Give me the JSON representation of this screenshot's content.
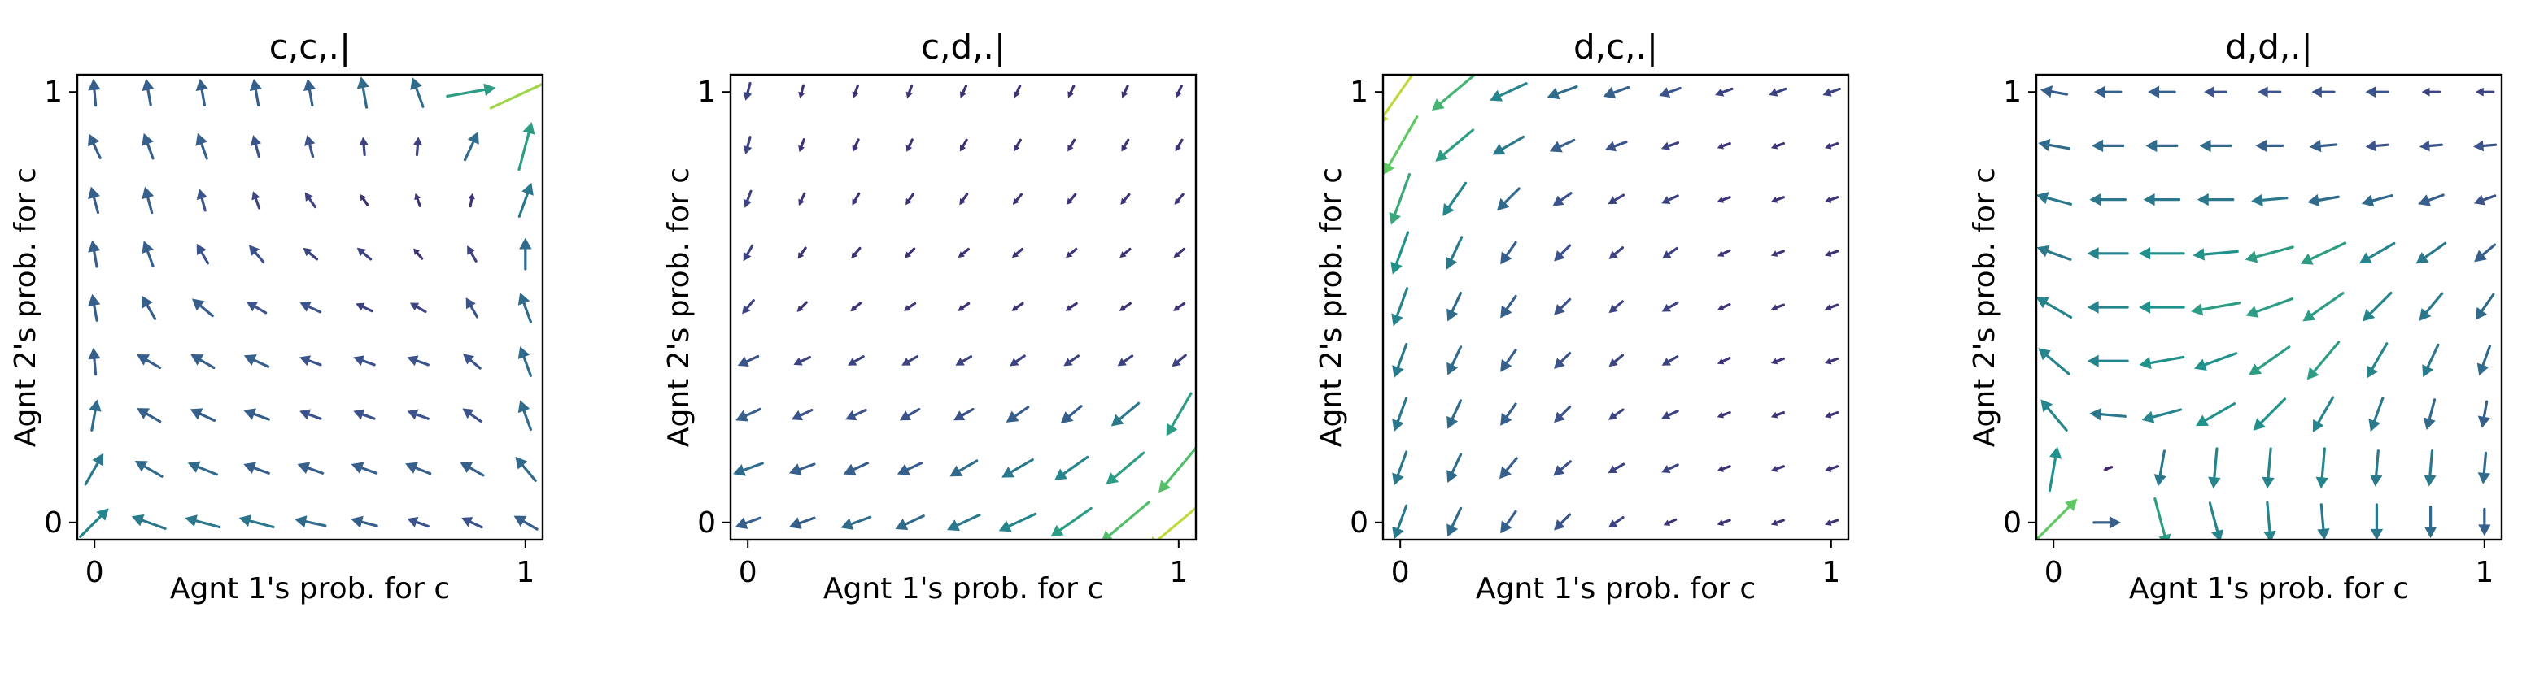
{
  "figure": {
    "colormap": [
      "#440154",
      "#3b528b",
      "#21918c",
      "#5ec962",
      "#fde725"
    ]
  },
  "chart_data": [
    {
      "type": "quiver",
      "title": "c,c,.|",
      "xlabel": "Agnt 1's prob. for c",
      "ylabel": "Agnt 2's prob. for c",
      "xlim": [
        -0.04,
        1.04
      ],
      "ylim": [
        -0.04,
        1.04
      ],
      "xticks": [
        0,
        1
      ],
      "yticks": [
        0,
        1
      ],
      "grid": false,
      "grid_points": [
        0,
        0.125,
        0.25,
        0.375,
        0.5,
        0.625,
        0.75,
        0.875,
        1
      ],
      "angles_deg": [
        [
          45,
          160,
          165,
          165,
          168,
          165,
          160,
          155,
          150
        ],
        [
          60,
          150,
          158,
          160,
          160,
          160,
          158,
          150,
          130
        ],
        [
          80,
          150,
          155,
          160,
          160,
          160,
          160,
          145,
          110
        ],
        [
          95,
          150,
          150,
          155,
          160,
          160,
          160,
          140,
          110
        ],
        [
          100,
          120,
          140,
          150,
          155,
          155,
          150,
          120,
          110
        ],
        [
          100,
          110,
          120,
          130,
          140,
          140,
          130,
          120,
          90
        ],
        [
          105,
          105,
          105,
          110,
          125,
          125,
          110,
          80,
          70
        ],
        [
          115,
          110,
          110,
          105,
          105,
          95,
          85,
          65,
          75
        ],
        [
          95,
          100,
          100,
          100,
          100,
          100,
          110,
          10,
          25
        ]
      ],
      "magnitudes": [
        [
          0.45,
          0.4,
          0.4,
          0.4,
          0.35,
          0.3,
          0.25,
          0.25,
          0.3
        ],
        [
          0.4,
          0.35,
          0.35,
          0.3,
          0.3,
          0.3,
          0.3,
          0.3,
          0.35
        ],
        [
          0.35,
          0.3,
          0.3,
          0.3,
          0.25,
          0.25,
          0.25,
          0.25,
          0.35
        ],
        [
          0.3,
          0.3,
          0.3,
          0.3,
          0.25,
          0.25,
          0.25,
          0.25,
          0.35
        ],
        [
          0.3,
          0.3,
          0.3,
          0.25,
          0.25,
          0.2,
          0.2,
          0.25,
          0.35
        ],
        [
          0.3,
          0.3,
          0.25,
          0.25,
          0.2,
          0.2,
          0.15,
          0.2,
          0.35
        ],
        [
          0.3,
          0.3,
          0.25,
          0.2,
          0.2,
          0.15,
          0.15,
          0.15,
          0.4
        ],
        [
          0.3,
          0.3,
          0.3,
          0.25,
          0.25,
          0.2,
          0.2,
          0.35,
          0.55
        ],
        [
          0.3,
          0.3,
          0.3,
          0.3,
          0.3,
          0.35,
          0.35,
          0.55,
          0.85
        ]
      ]
    },
    {
      "type": "quiver",
      "title": "c,d,.|",
      "xlabel": "Agnt 1's prob. for c",
      "ylabel": "Agnt 2's prob. for c",
      "xlim": [
        -0.04,
        1.04
      ],
      "ylim": [
        -0.04,
        1.04
      ],
      "xticks": [
        0,
        1
      ],
      "yticks": [
        0,
        1
      ],
      "grid": false,
      "grid_points": [
        0,
        0.125,
        0.25,
        0.375,
        0.5,
        0.625,
        0.75,
        0.875,
        1
      ],
      "angles_deg": [
        [
          200,
          200,
          200,
          205,
          205,
          205,
          215,
          220,
          220
        ],
        [
          200,
          200,
          205,
          205,
          210,
          210,
          215,
          220,
          230
        ],
        [
          205,
          205,
          205,
          210,
          210,
          215,
          220,
          220,
          240
        ],
        [
          205,
          205,
          210,
          210,
          210,
          215,
          215,
          215,
          220
        ],
        [
          230,
          225,
          220,
          215,
          215,
          215,
          215,
          215,
          215
        ],
        [
          240,
          235,
          230,
          225,
          220,
          220,
          220,
          220,
          220
        ],
        [
          250,
          245,
          240,
          235,
          235,
          230,
          230,
          230,
          230
        ],
        [
          255,
          250,
          245,
          245,
          240,
          240,
          240,
          240,
          240
        ],
        [
          255,
          255,
          250,
          250,
          245,
          245,
          245,
          245,
          245
        ]
      ],
      "magnitudes": [
        [
          0.3,
          0.3,
          0.35,
          0.35,
          0.4,
          0.45,
          0.55,
          0.7,
          0.9
        ],
        [
          0.35,
          0.3,
          0.3,
          0.3,
          0.35,
          0.4,
          0.45,
          0.55,
          0.7
        ],
        [
          0.3,
          0.25,
          0.25,
          0.25,
          0.25,
          0.3,
          0.3,
          0.4,
          0.55
        ],
        [
          0.25,
          0.2,
          0.2,
          0.2,
          0.2,
          0.2,
          0.2,
          0.2,
          0.2
        ],
        [
          0.2,
          0.15,
          0.15,
          0.15,
          0.15,
          0.15,
          0.15,
          0.15,
          0.15
        ],
        [
          0.2,
          0.15,
          0.15,
          0.15,
          0.15,
          0.15,
          0.15,
          0.15,
          0.15
        ],
        [
          0.2,
          0.15,
          0.15,
          0.15,
          0.15,
          0.15,
          0.15,
          0.15,
          0.15
        ],
        [
          0.2,
          0.15,
          0.15,
          0.15,
          0.15,
          0.15,
          0.15,
          0.15,
          0.15
        ],
        [
          0.2,
          0.15,
          0.15,
          0.15,
          0.15,
          0.15,
          0.15,
          0.15,
          0.15
        ]
      ]
    },
    {
      "type": "quiver",
      "title": "d,c,.|",
      "xlabel": "Agnt 1's prob. for c",
      "ylabel": "Agnt 2's prob. for c",
      "xlim": [
        -0.04,
        1.04
      ],
      "ylim": [
        -0.04,
        1.04
      ],
      "xticks": [
        0,
        1
      ],
      "yticks": [
        0,
        1
      ],
      "grid": false,
      "grid_points": [
        0,
        0.125,
        0.25,
        0.375,
        0.5,
        0.625,
        0.75,
        0.875,
        1
      ],
      "angles_deg": [
        [
          250,
          245,
          235,
          225,
          215,
          205,
          200,
          200,
          200
        ],
        [
          250,
          245,
          230,
          220,
          210,
          205,
          200,
          200,
          200
        ],
        [
          250,
          245,
          235,
          225,
          215,
          205,
          200,
          200,
          200
        ],
        [
          250,
          245,
          235,
          225,
          220,
          210,
          205,
          200,
          200
        ],
        [
          250,
          245,
          235,
          225,
          220,
          210,
          205,
          200,
          200
        ],
        [
          250,
          245,
          235,
          225,
          220,
          215,
          205,
          200,
          200
        ],
        [
          250,
          235,
          225,
          215,
          210,
          205,
          200,
          200,
          200
        ],
        [
          240,
          220,
          210,
          205,
          200,
          200,
          200,
          200,
          200
        ],
        [
          235,
          220,
          205,
          200,
          200,
          200,
          200,
          200,
          200
        ]
      ],
      "magnitudes": [
        [
          0.4,
          0.35,
          0.3,
          0.25,
          0.2,
          0.15,
          0.15,
          0.15,
          0.15
        ],
        [
          0.4,
          0.35,
          0.3,
          0.25,
          0.2,
          0.2,
          0.15,
          0.15,
          0.15
        ],
        [
          0.4,
          0.35,
          0.3,
          0.25,
          0.2,
          0.2,
          0.15,
          0.15,
          0.15
        ],
        [
          0.4,
          0.35,
          0.3,
          0.25,
          0.2,
          0.2,
          0.15,
          0.15,
          0.15
        ],
        [
          0.45,
          0.35,
          0.3,
          0.25,
          0.2,
          0.2,
          0.15,
          0.15,
          0.15
        ],
        [
          0.5,
          0.4,
          0.3,
          0.25,
          0.2,
          0.2,
          0.15,
          0.15,
          0.15
        ],
        [
          0.6,
          0.45,
          0.35,
          0.25,
          0.2,
          0.2,
          0.15,
          0.15,
          0.15
        ],
        [
          0.75,
          0.55,
          0.4,
          0.3,
          0.25,
          0.2,
          0.15,
          0.15,
          0.15
        ],
        [
          0.9,
          0.65,
          0.45,
          0.35,
          0.3,
          0.25,
          0.2,
          0.2,
          0.2
        ]
      ]
    },
    {
      "type": "quiver",
      "title": "d,d,.|",
      "xlabel": "Agnt 1's prob. for c",
      "ylabel": "Agnt 2's prob. for c",
      "xlim": [
        -0.04,
        1.04
      ],
      "ylim": [
        -0.04,
        1.04
      ],
      "xticks": [
        0,
        1
      ],
      "yticks": [
        0,
        1
      ],
      "grid": false,
      "grid_points": [
        0,
        0.125,
        0.25,
        0.375,
        0.5,
        0.625,
        0.75,
        0.875,
        1
      ],
      "angles_deg": [
        [
          45,
          0,
          285,
          285,
          275,
          275,
          270,
          270,
          270
        ],
        [
          80,
          200,
          260,
          265,
          265,
          265,
          265,
          265,
          265
        ],
        [
          130,
          175,
          195,
          210,
          225,
          240,
          250,
          255,
          260
        ],
        [
          140,
          180,
          190,
          200,
          215,
          230,
          240,
          245,
          250
        ],
        [
          150,
          180,
          180,
          190,
          200,
          215,
          225,
          230,
          235
        ],
        [
          160,
          180,
          180,
          185,
          195,
          205,
          210,
          215,
          220
        ],
        [
          165,
          180,
          180,
          180,
          185,
          190,
          195,
          200,
          200
        ],
        [
          170,
          180,
          180,
          180,
          180,
          185,
          185,
          185,
          185
        ],
        [
          170,
          180,
          180,
          180,
          180,
          180,
          180,
          180,
          180
        ]
      ],
      "magnitudes": [
        [
          0.75,
          0.3,
          0.55,
          0.45,
          0.45,
          0.4,
          0.4,
          0.35,
          0.3
        ],
        [
          0.5,
          0.1,
          0.4,
          0.45,
          0.45,
          0.45,
          0.4,
          0.4,
          0.35
        ],
        [
          0.45,
          0.4,
          0.45,
          0.5,
          0.5,
          0.45,
          0.4,
          0.35,
          0.3
        ],
        [
          0.45,
          0.45,
          0.5,
          0.5,
          0.55,
          0.55,
          0.45,
          0.4,
          0.35
        ],
        [
          0.45,
          0.45,
          0.5,
          0.55,
          0.55,
          0.55,
          0.45,
          0.4,
          0.35
        ],
        [
          0.4,
          0.45,
          0.5,
          0.5,
          0.55,
          0.55,
          0.45,
          0.4,
          0.3
        ],
        [
          0.4,
          0.4,
          0.4,
          0.4,
          0.4,
          0.35,
          0.35,
          0.3,
          0.25
        ],
        [
          0.35,
          0.35,
          0.35,
          0.35,
          0.3,
          0.3,
          0.25,
          0.25,
          0.25
        ],
        [
          0.3,
          0.3,
          0.3,
          0.25,
          0.25,
          0.25,
          0.25,
          0.2,
          0.2
        ]
      ]
    }
  ]
}
